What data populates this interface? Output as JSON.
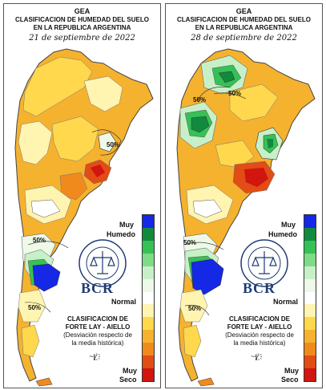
{
  "panels": [
    {
      "org": "GEA",
      "title_line1": "CLASIFICACION DE HUMEDAD DEL SUELO",
      "title_line2": "EN LA REPUBLICA ARGENTINA",
      "date": "21 de septiembre de 2022",
      "contour_labels": [
        "50%",
        "50%",
        "50%"
      ]
    },
    {
      "org": "GEA",
      "title_line1": "CLASIFICACION DE HUMEDAD DEL SUELO",
      "title_line2": "EN LA REPUBLICA ARGENTINA",
      "date": "28 de septiembre de 2022",
      "contour_labels": [
        "50%",
        "50%",
        "50%",
        "50%"
      ]
    }
  ],
  "legend": {
    "top_line1": "Muy",
    "top_line2": "Humedo",
    "middle": "Normal",
    "bottom_line1": "Muy",
    "bottom_line2": "Seco",
    "colors": [
      "#1428e6",
      "#118a3e",
      "#36c157",
      "#7ddc85",
      "#c8f0c8",
      "#eef9e8",
      "#ffffff",
      "#fff4b0",
      "#ffd84d",
      "#f5b22f",
      "#f08a1c",
      "#e24c15",
      "#d0160f"
    ]
  },
  "classification": {
    "line1": "CLASIFICACION DE",
    "line2": "FORTE LAY - AIELLO",
    "line3": "(Desviación respecto de",
    "line4": "la media histórica)"
  },
  "brand": "BCR",
  "colors": {
    "very_humid": "#1428e6",
    "humid": "#2fb04f",
    "normal": "#fffbe0",
    "dry": "#f5b22f",
    "very_dry": "#d0160f"
  }
}
